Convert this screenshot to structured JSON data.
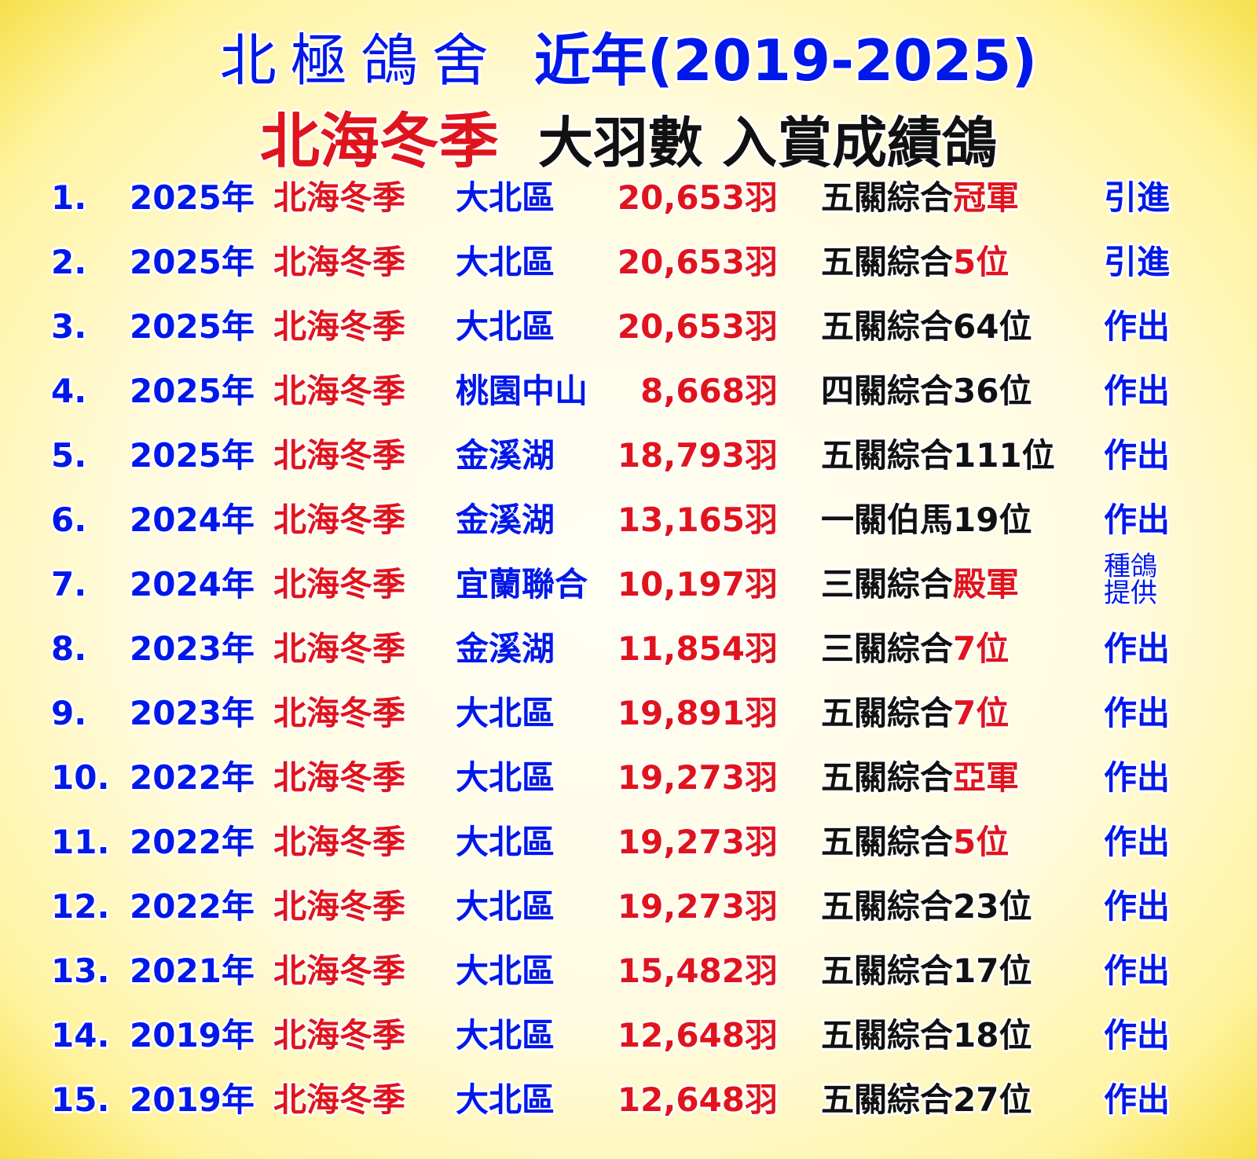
{
  "header": {
    "line1_name": "北極鴿舍",
    "line1_period": "近年(2019-2025)",
    "line2_event": "北海冬季",
    "line2_desc": "大羽數 入賞成績鴿"
  },
  "colors": {
    "blue": "#0018e8",
    "red": "#e0141c",
    "black": "#111111",
    "background": "#fff3a0"
  },
  "rows": [
    {
      "num": "1.",
      "year": "2025年",
      "event": "北海冬季",
      "region": "大北區",
      "count": "20,653羽",
      "result": "五關綜合",
      "result_hl": "冠軍",
      "action": "引進"
    },
    {
      "num": "2.",
      "year": "2025年",
      "event": "北海冬季",
      "region": "大北區",
      "count": "20,653羽",
      "result": "五關綜合",
      "result_hl": "5位",
      "action": "引進"
    },
    {
      "num": "3.",
      "year": "2025年",
      "event": "北海冬季",
      "region": "大北區",
      "count": "20,653羽",
      "result": "五關綜合64位",
      "result_hl": "",
      "action": "作出"
    },
    {
      "num": "4.",
      "year": "2025年",
      "event": "北海冬季",
      "region": "桃園中山",
      "count": "8,668羽",
      "result": "四關綜合36位",
      "result_hl": "",
      "action": "作出"
    },
    {
      "num": "5.",
      "year": "2025年",
      "event": "北海冬季",
      "region": "金溪湖",
      "count": "18,793羽",
      "result": "五關綜合111位",
      "result_hl": "",
      "action": "作出"
    },
    {
      "num": "6.",
      "year": "2024年",
      "event": "北海冬季",
      "region": "金溪湖",
      "count": "13,165羽",
      "result": "一關伯馬19位",
      "result_hl": "",
      "action": "作出"
    },
    {
      "num": "7.",
      "year": "2024年",
      "event": "北海冬季",
      "region": "宜蘭聯合",
      "count": "10,197羽",
      "result": "三關綜合",
      "result_hl": "殿軍",
      "action": "種鴿提供"
    },
    {
      "num": "8.",
      "year": "2023年",
      "event": "北海冬季",
      "region": "金溪湖",
      "count": "11,854羽",
      "result": "三關綜合",
      "result_hl": "7位",
      "action": "作出"
    },
    {
      "num": "9.",
      "year": "2023年",
      "event": "北海冬季",
      "region": "大北區",
      "count": "19,891羽",
      "result": "五關綜合",
      "result_hl": "7位",
      "action": "作出"
    },
    {
      "num": "10.",
      "year": "2022年",
      "event": "北海冬季",
      "region": "大北區",
      "count": "19,273羽",
      "result": "五關綜合",
      "result_hl": "亞軍",
      "action": "作出"
    },
    {
      "num": "11.",
      "year": "2022年",
      "event": "北海冬季",
      "region": "大北區",
      "count": "19,273羽",
      "result": "五關綜合",
      "result_hl": "5位",
      "action": "作出"
    },
    {
      "num": "12.",
      "year": "2022年",
      "event": "北海冬季",
      "region": "大北區",
      "count": "19,273羽",
      "result": "五關綜合23位",
      "result_hl": "",
      "action": "作出"
    },
    {
      "num": "13.",
      "year": "2021年",
      "event": "北海冬季",
      "region": "大北區",
      "count": "15,482羽",
      "result": "五關綜合17位",
      "result_hl": "",
      "action": "作出"
    },
    {
      "num": "14.",
      "year": "2019年",
      "event": "北海冬季",
      "region": "大北區",
      "count": "12,648羽",
      "result": "五關綜合18位",
      "result_hl": "",
      "action": "作出"
    },
    {
      "num": "15.",
      "year": "2019年",
      "event": "北海冬季",
      "region": "大北區",
      "count": "12,648羽",
      "result": "五關綜合27位",
      "result_hl": "",
      "action": "作出"
    }
  ]
}
